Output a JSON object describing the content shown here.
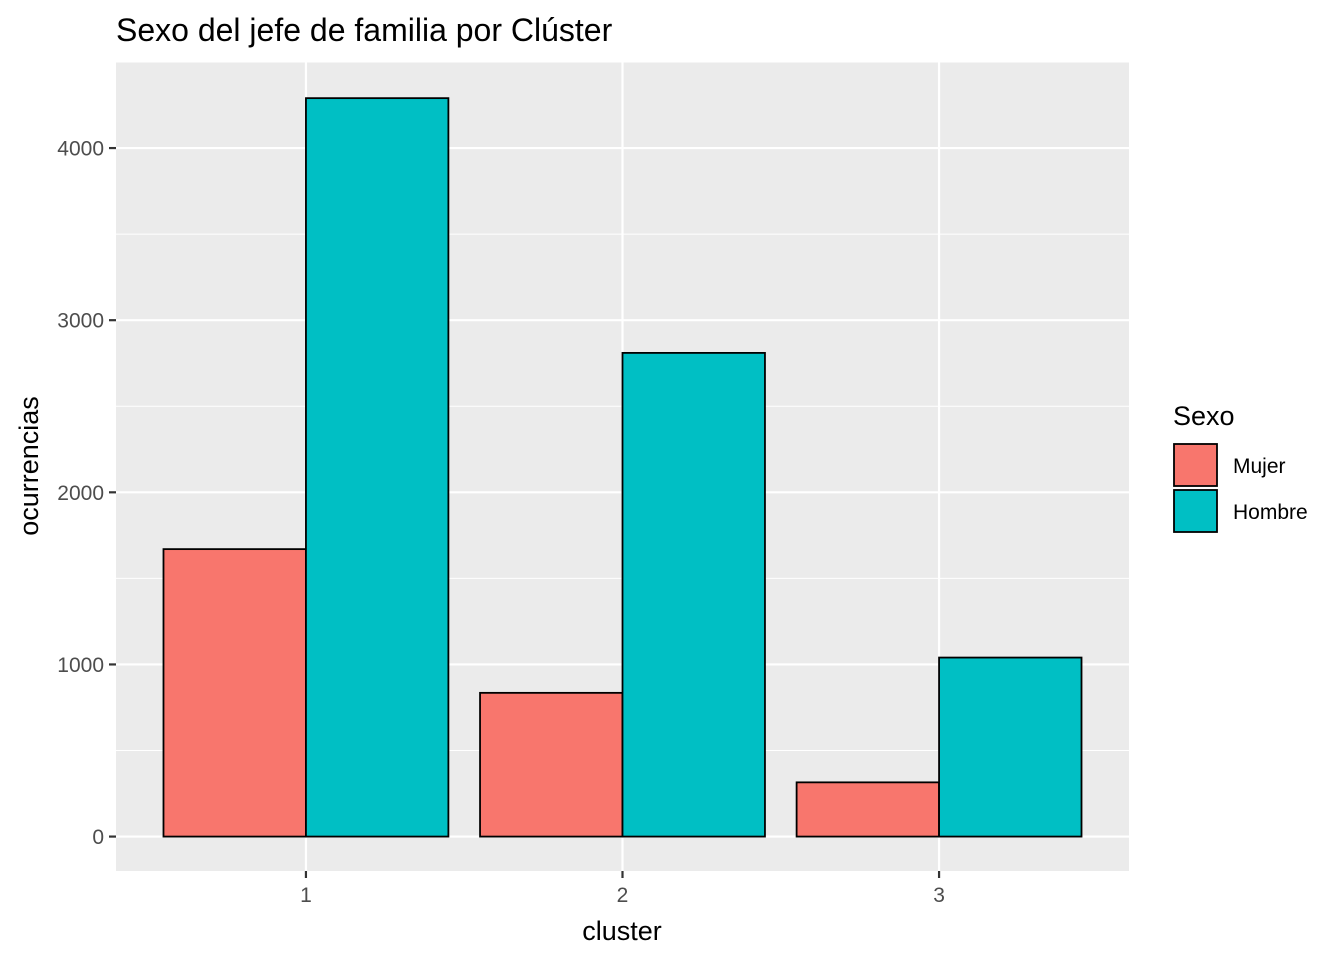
{
  "chart_data": {
    "type": "bar",
    "title": "Sexo del jefe de familia por Clúster",
    "xlabel": "cluster",
    "ylabel": "ocurrencias",
    "categories": [
      "1",
      "2",
      "3"
    ],
    "series": [
      {
        "name": "Mujer",
        "values": [
          1670,
          835,
          315
        ],
        "color": "#F8766D"
      },
      {
        "name": "Hombre",
        "values": [
          4290,
          2810,
          1040
        ],
        "color": "#00BFC4"
      }
    ],
    "ylim": [
      -200,
      4500
    ],
    "yticks": [
      0,
      1000,
      2000,
      3000,
      4000
    ],
    "grid": true,
    "panel_background": "#EBEBEB",
    "grid_color": "#FFFFFF",
    "bar_outline": "#000000",
    "legend": {
      "title": "Sexo",
      "placement": "right",
      "items": [
        "Mujer",
        "Hombre"
      ]
    }
  }
}
